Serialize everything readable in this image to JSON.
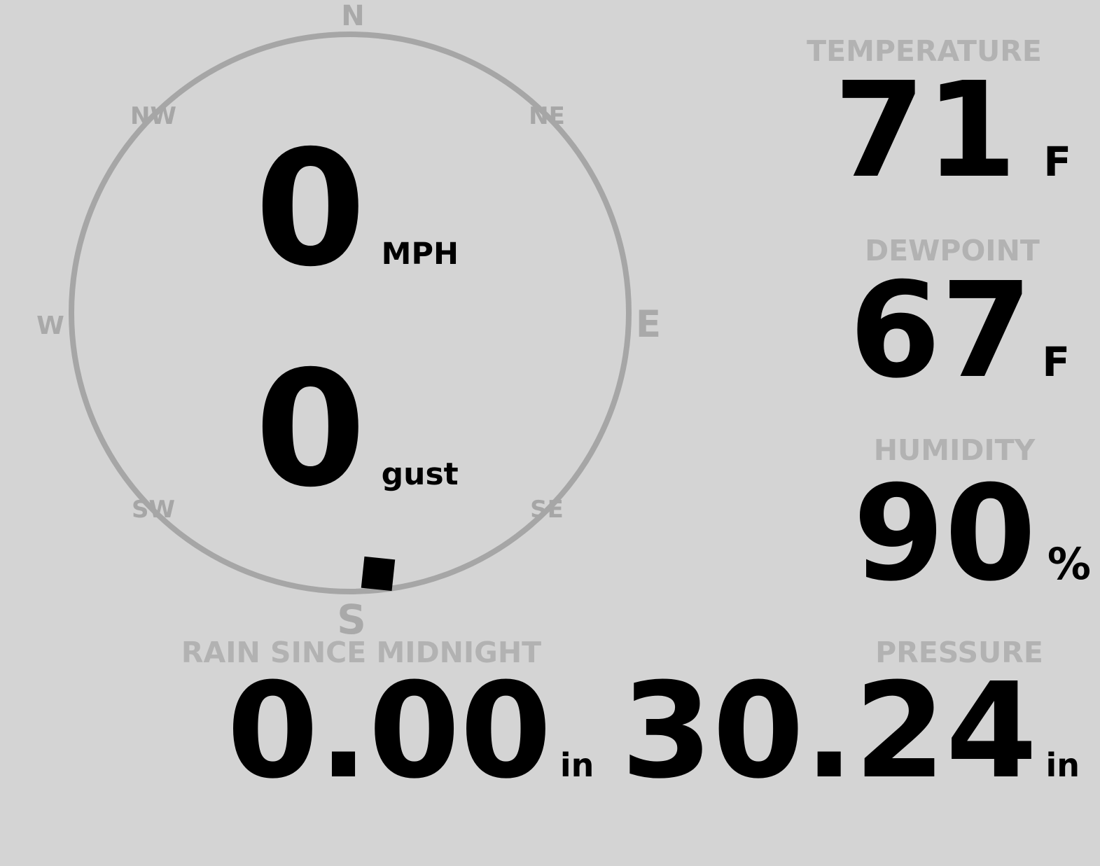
{
  "colors": {
    "background": "#d4d4d4",
    "gauge_ring": "#a6a6a6",
    "cardinal_text": "#a9a9a9",
    "section_label": "#b2b2b2",
    "value_text": "#000000",
    "wind_marker": "#000000"
  },
  "wind": {
    "speed": "0",
    "speed_unit": "MPH",
    "gust": "0",
    "gust_unit": "gust",
    "direction_marker": "south",
    "cardinals": {
      "n": "N",
      "e": "E",
      "s": "S",
      "w": "W",
      "ne": "NE",
      "nw": "NW",
      "se": "SE",
      "sw": "SW"
    }
  },
  "metrics": {
    "temperature": {
      "label": "TEMPERATURE",
      "value": "71",
      "unit": "F"
    },
    "dewpoint": {
      "label": "DEWPOINT",
      "value": "67",
      "unit": "F"
    },
    "humidity": {
      "label": "HUMIDITY",
      "value": "90",
      "unit": "%"
    },
    "pressure": {
      "label": "PRESSURE",
      "value": "30.24",
      "unit": "in"
    },
    "rain": {
      "label": "RAIN SINCE MIDNIGHT",
      "value": "0.00",
      "unit": "in"
    }
  }
}
